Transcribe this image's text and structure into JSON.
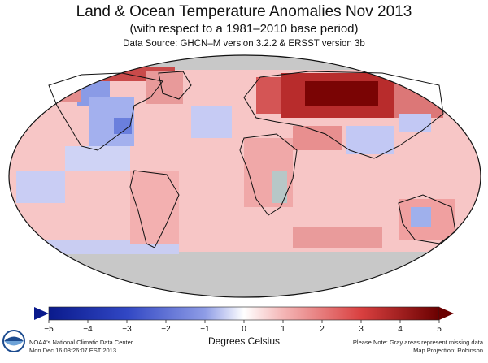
{
  "header": {
    "title": "Land & Ocean Temperature Anomalies Nov 2013",
    "subtitle": "(with respect to a 1981–2010 base period)",
    "source": "Data Source: GHCN–M version 3.2.2 & ERSST version 3b"
  },
  "legend": {
    "ticks": [
      "−5",
      "−4",
      "−3",
      "−2",
      "−1",
      "0",
      "1",
      "2",
      "3",
      "4",
      "5"
    ],
    "range": [
      -5,
      5
    ],
    "units": "Degrees Celsius",
    "colors": {
      "cold_dark": "#0a1a8c",
      "cold_mid": "#5b6fd6",
      "cold_light": "#c6cbf4",
      "neutral": "#ffffff",
      "warm_light": "#f9c9c9",
      "warm_mid": "#e56a6a",
      "warm_dark": "#6a0000",
      "missing": "#c8c8c8"
    }
  },
  "footer": {
    "agency": "NOAA's National Climatic Data Center",
    "timestamp": "Mon Dec 16 08:26:07 EST 2013",
    "note": "Please Note: Gray areas represent missing data",
    "projection": "Map Projection: Robinson"
  },
  "map": {
    "base_anomaly_color": "#f7c6c6",
    "ocean_missing_color": "#c8c8c8"
  }
}
